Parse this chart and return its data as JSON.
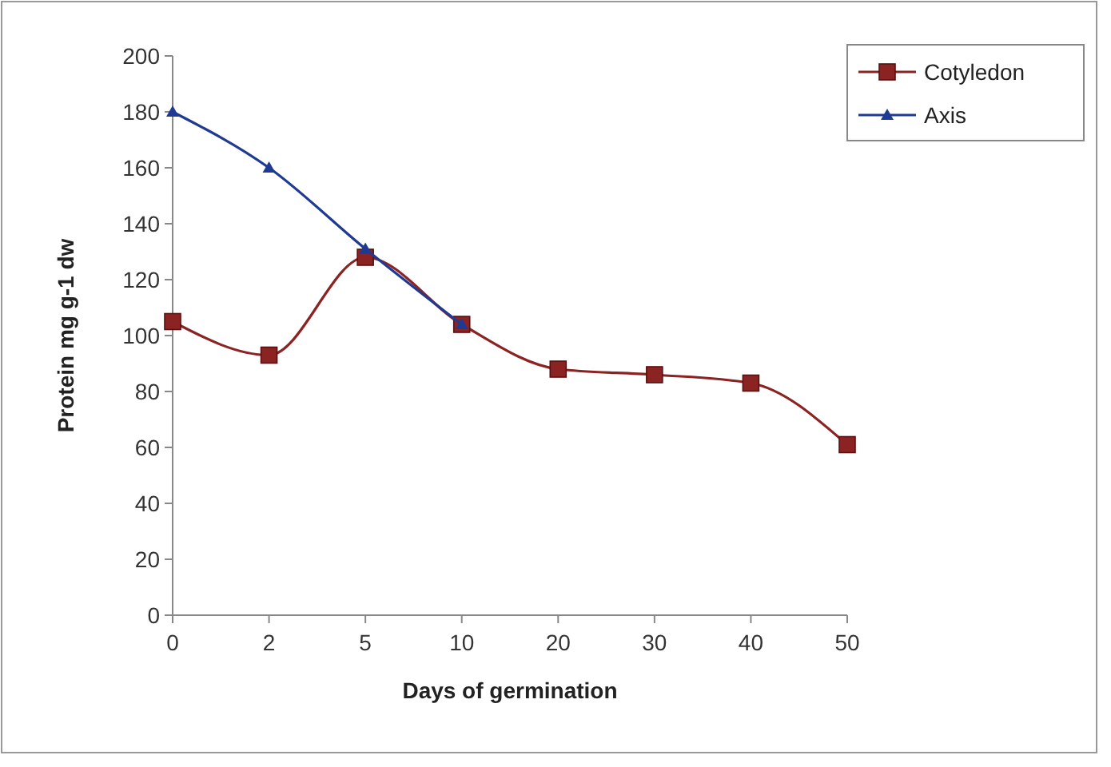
{
  "chart_data": {
    "type": "line",
    "xlabel": "Days of germination",
    "ylabel": "Protein mg g-1 dw",
    "categories": [
      "0",
      "2",
      "5",
      "10",
      "20",
      "30",
      "40",
      "50"
    ],
    "series": [
      {
        "name": "Cotyledon",
        "color": "#8b2323",
        "marker": "square",
        "values": [
          105,
          93,
          128,
          104,
          88,
          86,
          83,
          61
        ]
      },
      {
        "name": "Axis",
        "color": "#1f3a93",
        "marker": "triangle",
        "values": [
          180,
          160,
          131,
          104,
          null,
          null,
          null,
          null
        ]
      }
    ],
    "ylim": [
      0,
      200
    ],
    "yticks": [
      0,
      20,
      40,
      60,
      80,
      100,
      120,
      140,
      160,
      180,
      200
    ],
    "grid": false,
    "legend": "top right"
  }
}
